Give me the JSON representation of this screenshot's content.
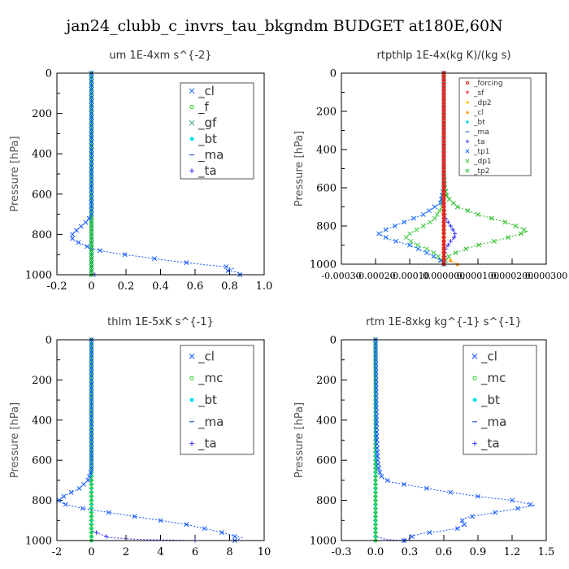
{
  "figure_title": "jan24_clubb_c_invrs_tau_bkgndm  BUDGET at180E,60N",
  "chart_data": [
    {
      "type": "line",
      "title": "um   1E-4xm s^{-2}",
      "ylabel": "Pressure [hPa]",
      "xlim": [
        -0.2,
        1.0
      ],
      "ylim": [
        0,
        1000
      ],
      "y_inverted": true,
      "xticks": [
        "-0.2",
        "0",
        "0.2",
        "0.4",
        "0.6",
        "0.8",
        "1.0"
      ],
      "xtick_values": [
        -0.2,
        0,
        0.2,
        0.4,
        0.6,
        0.8,
        1.0
      ],
      "yticks": [
        "0",
        "200",
        "400",
        "600",
        "800",
        "1000"
      ],
      "legend": {
        "placement": "top-right",
        "small": false
      },
      "series": [
        {
          "name": "_ta",
          "color": "#3333ff",
          "marker": "+",
          "points": [
            [
              0,
              0
            ],
            [
              0,
              600
            ],
            [
              0,
              900
            ],
            [
              0,
              990
            ],
            [
              0.02,
              1000
            ]
          ]
        },
        {
          "name": "_ma",
          "color": "#2255cc",
          "marker": "-",
          "points": [
            [
              0,
              0
            ],
            [
              0,
              600
            ],
            [
              0,
              990
            ],
            [
              0,
              1000
            ]
          ]
        },
        {
          "name": "_bt",
          "color": "#00ddee",
          "marker": "diamond",
          "points": [
            [
              0,
              0
            ],
            [
              0,
              1000
            ]
          ]
        },
        {
          "name": "_gf",
          "color": "#339977",
          "marker": "x",
          "points": [
            [
              0,
              0
            ],
            [
              0,
              1000
            ]
          ]
        },
        {
          "name": "_f",
          "color": "#22cc22",
          "marker": "o",
          "points": [
            [
              0,
              0
            ],
            [
              0,
              1000
            ]
          ]
        },
        {
          "name": "_cl",
          "color": "#1155ff",
          "marker": "x",
          "points": [
            [
              0,
              0
            ],
            [
              0,
              600
            ],
            [
              0,
              700
            ],
            [
              -0.02,
              730
            ],
            [
              -0.06,
              760
            ],
            [
              -0.1,
              790
            ],
            [
              -0.12,
              810
            ],
            [
              -0.1,
              830
            ],
            [
              -0.05,
              850
            ],
            [
              0.0,
              870
            ],
            [
              0.05,
              880
            ],
            [
              0.15,
              895
            ],
            [
              0.28,
              910
            ],
            [
              0.45,
              930
            ],
            [
              0.65,
              950
            ],
            [
              0.78,
              960
            ],
            [
              0.82,
              970
            ],
            [
              0.79,
              980
            ],
            [
              0.86,
              990
            ],
            [
              0.86,
              1000
            ]
          ]
        }
      ]
    },
    {
      "type": "line",
      "title": "rtpthlp   1E-4x(kg K)/(kg s)",
      "ylabel": "Pressure [hPa]",
      "xlim": [
        -0.0003,
        0.0003
      ],
      "ylim": [
        0,
        1000
      ],
      "y_inverted": true,
      "xticks": [
        "-0.00030",
        "-0.00020",
        "-0.00010",
        "0.000000",
        "0.000100",
        "0.000200",
        "0.000300"
      ],
      "xtick_values": [
        -0.0003,
        -0.0002,
        -0.0001,
        0,
        0.0001,
        0.0002,
        0.0003
      ],
      "yticks": [
        "0",
        "200",
        "400",
        "600",
        "800",
        "1000"
      ],
      "legend": {
        "placement": "top-right",
        "small": true
      },
      "series": [
        {
          "name": "_tp2",
          "color": "#22bb22",
          "marker": "x",
          "points": [
            [
              0,
              0
            ],
            [
              0,
              500
            ],
            [
              3e-06,
              600
            ],
            [
              1e-05,
              650
            ],
            [
              4e-05,
              700
            ],
            [
              0.0001,
              740
            ],
            [
              0.00018,
              780
            ],
            [
              0.000225,
              810
            ],
            [
              0.000245,
              830
            ],
            [
              0.00017,
              870
            ],
            [
              8e-05,
              910
            ],
            [
              2e-05,
              950
            ],
            [
              5e-06,
              980
            ],
            [
              0,
              1000
            ]
          ]
        },
        {
          "name": "_dp1",
          "color": "#44cc44",
          "marker": "x",
          "points": [
            [
              0,
              0
            ],
            [
              0,
              600
            ],
            [
              -5e-06,
              700
            ],
            [
              -3e-05,
              770
            ],
            [
              -7e-05,
              810
            ],
            [
              -0.0001,
              840
            ],
            [
              -0.00011,
              860
            ],
            [
              -9e-05,
              890
            ],
            [
              -5e-05,
              920
            ],
            [
              -2e-05,
              950
            ],
            [
              0,
              1000
            ]
          ]
        },
        {
          "name": "_tp1",
          "color": "#1166ff",
          "marker": "x",
          "points": [
            [
              0,
              0
            ],
            [
              0,
              600
            ],
            [
              -1e-05,
              680
            ],
            [
              -6e-05,
              740
            ],
            [
              -0.00013,
              790
            ],
            [
              -0.00017,
              820
            ],
            [
              -0.00019,
              840
            ],
            [
              -0.00016,
              870
            ],
            [
              -0.0001,
              900
            ],
            [
              -5e-05,
              940
            ],
            [
              -1e-05,
              980
            ],
            [
              0,
              1000
            ]
          ]
        },
        {
          "name": "_ta",
          "color": "#3333ff",
          "marker": "+",
          "points": [
            [
              0,
              0
            ],
            [
              0,
              700
            ],
            [
              5e-06,
              760
            ],
            [
              2e-05,
              800
            ],
            [
              3e-05,
              830
            ],
            [
              3.5e-05,
              850
            ],
            [
              2e-05,
              880
            ],
            [
              5e-06,
              920
            ],
            [
              0,
              1000
            ]
          ]
        },
        {
          "name": "_ma",
          "color": "#2255cc",
          "marker": "-",
          "points": [
            [
              0,
              0
            ],
            [
              0,
              1000
            ]
          ]
        },
        {
          "name": "_bt",
          "color": "#00ddee",
          "marker": "diamond",
          "points": [
            [
              0,
              0
            ],
            [
              0,
              1000
            ]
          ]
        },
        {
          "name": "_cl",
          "color": "#ff9900",
          "marker": "triangle",
          "points": [
            [
              0,
              0
            ],
            [
              0,
              960
            ],
            [
              3e-05,
              990
            ],
            [
              4e-05,
              1000
            ]
          ]
        },
        {
          "name": "_dp2",
          "color": "#ffcc00",
          "marker": "diamond",
          "points": [
            [
              0,
              0
            ],
            [
              0,
              1000
            ]
          ]
        },
        {
          "name": "_sf",
          "color": "#ff3333",
          "marker": "v",
          "points": [
            [
              0,
              0
            ],
            [
              0,
              1000
            ]
          ]
        },
        {
          "name": "_forcing",
          "color": "#dd1111",
          "marker": "o",
          "points": [
            [
              0,
              0
            ],
            [
              0,
              1000
            ]
          ]
        }
      ]
    },
    {
      "type": "line",
      "title": "thlm   1E-5xK s^{-1}",
      "ylabel": "Pressure [hPa]",
      "xlim": [
        -2,
        10
      ],
      "ylim": [
        0,
        1000
      ],
      "y_inverted": true,
      "xticks": [
        "-2",
        "0",
        "2",
        "4",
        "6",
        "8",
        "10"
      ],
      "xtick_values": [
        -2,
        0,
        2,
        4,
        6,
        8,
        10
      ],
      "yticks": [
        "0",
        "200",
        "400",
        "600",
        "800",
        "1000"
      ],
      "legend": {
        "placement": "top-right",
        "small": false
      },
      "series": [
        {
          "name": "_ta",
          "color": "#3333ff",
          "marker": "+",
          "points": [
            [
              0,
              0
            ],
            [
              0,
              950
            ],
            [
              1,
              985
            ],
            [
              3,
              995
            ],
            [
              6,
              1000
            ]
          ]
        },
        {
          "name": "_ma",
          "color": "#2255cc",
          "marker": "-",
          "points": [
            [
              0,
              0
            ],
            [
              0,
              1000
            ]
          ]
        },
        {
          "name": "_bt",
          "color": "#00ddee",
          "marker": "diamond",
          "points": [
            [
              0,
              0
            ],
            [
              0,
              1000
            ]
          ]
        },
        {
          "name": "_mc",
          "color": "#22cc22",
          "marker": "o",
          "points": [
            [
              0,
              0
            ],
            [
              0,
              1000
            ]
          ]
        },
        {
          "name": "_cl",
          "color": "#1155ff",
          "marker": "x",
          "points": [
            [
              0,
              0
            ],
            [
              0,
              650
            ],
            [
              -0.2,
              700
            ],
            [
              -0.7,
              740
            ],
            [
              -1.4,
              770
            ],
            [
              -1.8,
              790
            ],
            [
              -1.9,
              805
            ],
            [
              -1.5,
              820
            ],
            [
              -0.5,
              840
            ],
            [
              1.0,
              860
            ],
            [
              2.5,
              880
            ],
            [
              4.0,
              900
            ],
            [
              5.5,
              920
            ],
            [
              6.8,
              945
            ],
            [
              7.8,
              965
            ],
            [
              8.3,
              980
            ],
            [
              8.7,
              985
            ],
            [
              8.5,
              995
            ],
            [
              8.3,
              1000
            ]
          ]
        }
      ]
    },
    {
      "type": "line",
      "title": "rtm   1E-8xkg kg^{-1} s^{-1}",
      "ylabel": "Pressure [hPa]",
      "xlim": [
        -0.3,
        1.5
      ],
      "ylim": [
        0,
        1000
      ],
      "y_inverted": true,
      "xticks": [
        "-0.3",
        "0.0",
        "0.3",
        "0.6",
        "0.9",
        "1.2",
        "1.5"
      ],
      "xtick_values": [
        -0.3,
        0,
        0.3,
        0.6,
        0.9,
        1.2,
        1.5
      ],
      "yticks": [
        "0",
        "200",
        "400",
        "600",
        "800",
        "1000"
      ],
      "legend": {
        "placement": "top-right",
        "small": false
      },
      "series": [
        {
          "name": "_ta",
          "color": "#3333ff",
          "marker": "+",
          "points": [
            [
              0,
              0
            ],
            [
              0,
              980
            ],
            [
              0.1,
              995
            ],
            [
              0.25,
              1000
            ]
          ]
        },
        {
          "name": "_ma",
          "color": "#2255cc",
          "marker": "-",
          "points": [
            [
              0,
              0
            ],
            [
              0,
              1000
            ]
          ]
        },
        {
          "name": "_bt",
          "color": "#00ddee",
          "marker": "diamond",
          "points": [
            [
              0,
              0
            ],
            [
              0,
              1000
            ]
          ]
        },
        {
          "name": "_mc",
          "color": "#22cc22",
          "marker": "o",
          "points": [
            [
              0,
              0
            ],
            [
              0,
              1000
            ]
          ]
        },
        {
          "name": "_cl",
          "color": "#1155ff",
          "marker": "x",
          "points": [
            [
              0,
              0
            ],
            [
              0.01,
              500
            ],
            [
              0.02,
              600
            ],
            [
              0.03,
              650
            ],
            [
              0.06,
              690
            ],
            [
              0.15,
              710
            ],
            [
              0.35,
              730
            ],
            [
              0.6,
              755
            ],
            [
              0.9,
              780
            ],
            [
              1.2,
              800
            ],
            [
              1.4,
              825
            ],
            [
              1.2,
              845
            ],
            [
              1.0,
              865
            ],
            [
              0.8,
              885
            ],
            [
              0.75,
              905
            ],
            [
              0.78,
              920
            ],
            [
              0.72,
              940
            ],
            [
              0.55,
              955
            ],
            [
              0.4,
              965
            ],
            [
              0.32,
              980
            ],
            [
              0.3,
              990
            ],
            [
              0.25,
              1000
            ]
          ]
        }
      ]
    }
  ]
}
